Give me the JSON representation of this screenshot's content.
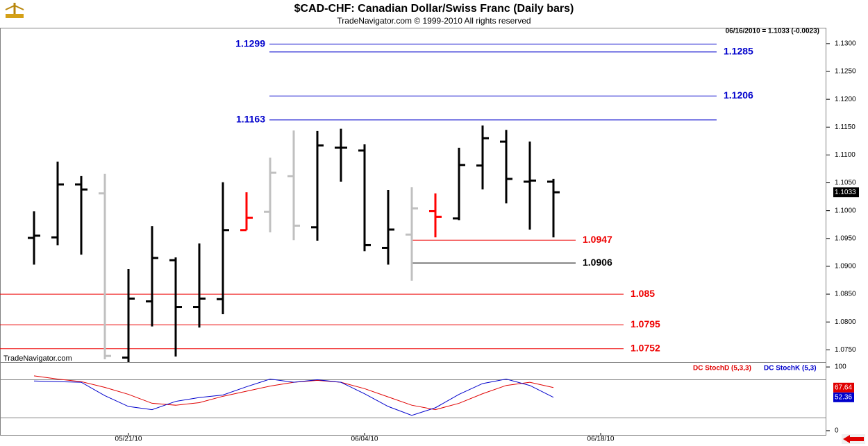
{
  "chart_data": [
    {
      "type": "ohlc",
      "title": "$CAD-CHF:  Canadian Dollar/Swiss Franc  (Daily bars)",
      "subtitle": "TradeNavigator.com © 1999-2010 All rights reserved",
      "quote": "06/16/2010 = 1.1033 (-0.0023)",
      "watermark": "TradeNavigator.com",
      "open": [
        1.0951,
        1.0952,
        1.1047,
        1.1031,
        1.0736,
        1.0837,
        1.0911,
        1.0827,
        1.0841,
        1.0965,
        1.0998,
        1.1062,
        1.097,
        1.1113,
        1.1108,
        1.0933,
        1.0957,
        1.0999,
        1.0986,
        1.1081,
        1.1124,
        1.1052,
        1.1052,
        null,
        null,
        null,
        null,
        null,
        null,
        null,
        null,
        null,
        null,
        null
      ],
      "high": [
        1.0999,
        1.1088,
        1.1062,
        1.1066,
        1.0895,
        1.0972,
        1.0916,
        1.0941,
        1.1051,
        1.1033,
        1.1095,
        1.1144,
        1.1143,
        1.1147,
        1.1119,
        1.1037,
        1.1042,
        1.1031,
        1.1113,
        1.1153,
        1.1145,
        1.1124,
        1.1057,
        null,
        null,
        null,
        null,
        null,
        null,
        null,
        null,
        null,
        null,
        null
      ],
      "low": [
        1.0903,
        1.0938,
        1.0921,
        1.0733,
        1.0728,
        1.0792,
        1.0738,
        1.079,
        1.0814,
        1.0965,
        1.0961,
        1.0947,
        1.0946,
        1.1052,
        1.0927,
        1.0903,
        1.0874,
        1.0952,
        1.0983,
        1.1038,
        1.1013,
        1.0966,
        1.0952,
        null,
        null,
        null,
        null,
        null,
        null,
        null,
        null,
        null,
        null,
        null
      ],
      "close": [
        1.0955,
        1.1047,
        1.1038,
        1.0739,
        1.0842,
        1.0915,
        1.0827,
        1.0842,
        1.0965,
        1.0987,
        1.1068,
        1.0973,
        1.1117,
        1.1113,
        1.0938,
        1.0966,
        1.1004,
        1.0989,
        1.1082,
        1.113,
        1.1057,
        1.1054,
        1.1033,
        null,
        null,
        null,
        null,
        null,
        null,
        null,
        null,
        null,
        null,
        null
      ],
      "colors": [
        "#000000",
        "#000000",
        "#000000",
        "#c0c0c0",
        "#000000",
        "#000000",
        "#000000",
        "#000000",
        "#000000",
        "#ff0000",
        "#c0c0c0",
        "#c0c0c0",
        "#000000",
        "#000000",
        "#000000",
        "#000000",
        "#c0c0c0",
        "#ff0000",
        "#000000",
        "#000000",
        "#000000",
        "#000000",
        "#000000",
        null,
        null,
        null,
        null,
        null,
        null,
        null,
        null,
        null,
        null,
        null
      ],
      "ylim": [
        1.0728,
        1.1326
      ],
      "yticks": [
        {
          "value": 1.075,
          "label": "1.0750"
        },
        {
          "value": 1.08,
          "label": "1.0800"
        },
        {
          "value": 1.085,
          "label": "1.0850"
        },
        {
          "value": 1.09,
          "label": "1.0900"
        },
        {
          "value": 1.095,
          "label": "1.0950"
        },
        {
          "value": 1.1,
          "label": "1.1000"
        },
        {
          "value": 1.105,
          "label": "1.1050"
        },
        {
          "value": 1.11,
          "label": "1.1100"
        },
        {
          "value": 1.115,
          "label": "1.1150"
        },
        {
          "value": 1.12,
          "label": "1.1200"
        },
        {
          "value": 1.125,
          "label": "1.1250"
        },
        {
          "value": 1.13,
          "label": "1.1300"
        }
      ],
      "levels": [
        {
          "value": 1.1299,
          "color": "#0000cc"
        },
        {
          "value": 1.1285,
          "color": "#0000cc"
        },
        {
          "value": 1.1206,
          "color": "#0000cc"
        },
        {
          "value": 1.1163,
          "color": "#0000cc"
        },
        {
          "value": 1.0947,
          "color": "#ee0000"
        },
        {
          "value": 1.0906,
          "color": "#000000"
        },
        {
          "value": 1.085,
          "color": "#ee0000"
        },
        {
          "value": 1.0795,
          "color": "#ee0000"
        },
        {
          "value": 1.0752,
          "color": "#ee0000"
        }
      ]
    },
    {
      "type": "line",
      "categories": [
        null,
        null,
        null,
        null,
        "05/21/10",
        null,
        null,
        null,
        null,
        null,
        null,
        null,
        null,
        null,
        "06/04/10",
        null,
        null,
        null,
        null,
        null,
        null,
        null,
        null,
        null,
        "06/18/10",
        null,
        null,
        null,
        null,
        null,
        null,
        null,
        null,
        null
      ],
      "series": [
        {
          "name": "DC StochD (5,3,3)",
          "color": "#e00000",
          "values": [
            86,
            81,
            77,
            68,
            57,
            43,
            40,
            44,
            54,
            62,
            70,
            76,
            79,
            76,
            66,
            53,
            40,
            33,
            43,
            58,
            71,
            76,
            67.64,
            null,
            null,
            null,
            null,
            null,
            null,
            null,
            null,
            null,
            null,
            null
          ]
        },
        {
          "name": "DC StochK (5,3)",
          "color": "#0000cc",
          "values": [
            78,
            77,
            76,
            55,
            38,
            33,
            46,
            52,
            56,
            69,
            81,
            76,
            80,
            76,
            58,
            38,
            24,
            36,
            57,
            74,
            81,
            71,
            52.36,
            null,
            null,
            null,
            null,
            null,
            null,
            null,
            null,
            null,
            null,
            null
          ]
        }
      ],
      "ylim": [
        -7.7,
        107.7
      ],
      "yticks": [
        0,
        100
      ],
      "hlines": [
        20,
        80
      ]
    }
  ]
}
